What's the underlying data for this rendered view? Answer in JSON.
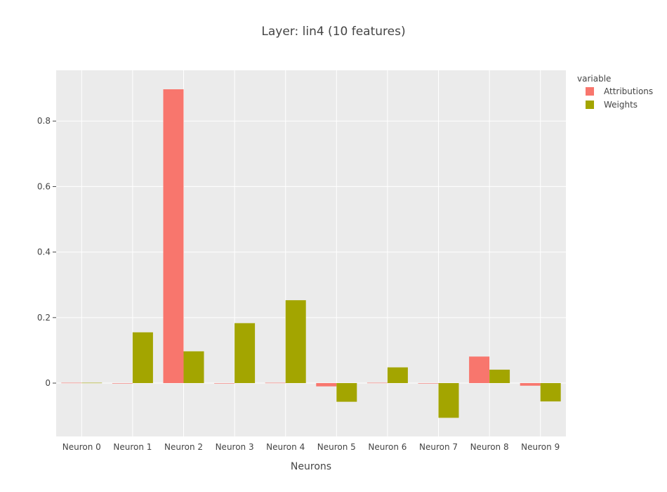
{
  "chart_data": {
    "type": "bar",
    "title": "Layer: lin4 (10 features)",
    "xlabel": "Neurons",
    "ylabel": "",
    "categories": [
      "Neuron 0",
      "Neuron 1",
      "Neuron 2",
      "Neuron 3",
      "Neuron 4",
      "Neuron 5",
      "Neuron 6",
      "Neuron 7",
      "Neuron 8",
      "Neuron 9"
    ],
    "series": [
      {
        "name": "Attributions",
        "color": "#F8766D",
        "values": [
          0.001,
          0.0,
          0.897,
          0.0,
          0.001,
          -0.01,
          0.001,
          0.0,
          0.081,
          -0.008
        ]
      },
      {
        "name": "Weights",
        "color": "#A3A500",
        "values": [
          0.001,
          0.155,
          0.097,
          0.183,
          0.253,
          -0.057,
          0.048,
          -0.106,
          0.041,
          -0.056
        ]
      }
    ],
    "ylim": [
      -0.163,
      0.955
    ],
    "yticks": [
      0,
      0.2,
      0.4,
      0.6,
      0.8
    ],
    "ytick_labels": [
      "0",
      "0.2",
      "0.4",
      "0.6",
      "0.8"
    ],
    "grid": true,
    "legend": {
      "title": "variable",
      "position": "right"
    },
    "colors": {
      "plot_bg": "#EBEBEB",
      "grid": "#FFFFFF",
      "text": "#444444"
    }
  }
}
